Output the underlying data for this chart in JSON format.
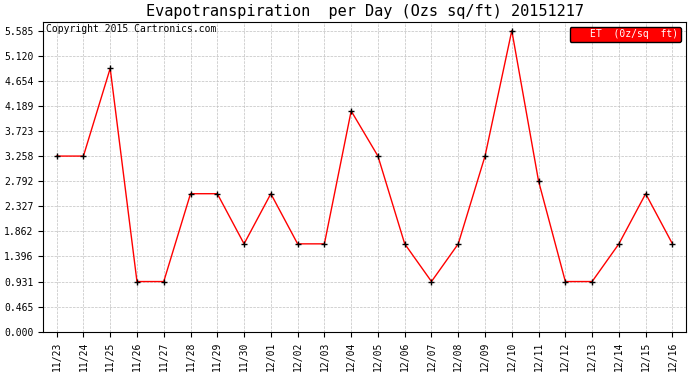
{
  "title": "Evapotranspiration  per Day (Ozs sq/ft) 20151217",
  "copyright": "Copyright 2015 Cartronics.com",
  "legend_label": "ET  (0z/sq  ft)",
  "x_labels": [
    "11/23",
    "11/24",
    "11/25",
    "11/26",
    "11/27",
    "11/28",
    "11/29",
    "11/30",
    "12/01",
    "12/02",
    "12/03",
    "12/04",
    "12/05",
    "12/06",
    "12/07",
    "12/08",
    "12/09",
    "12/10",
    "12/11",
    "12/12",
    "12/13",
    "12/14",
    "12/15",
    "12/16"
  ],
  "y_values": [
    3.258,
    3.258,
    4.885,
    0.931,
    0.931,
    2.56,
    2.56,
    1.63,
    2.56,
    1.63,
    1.63,
    4.095,
    3.258,
    1.63,
    0.931,
    1.63,
    3.258,
    5.585,
    2.792,
    0.931,
    0.931,
    1.63,
    2.56,
    1.63
  ],
  "y_ticks": [
    0.0,
    0.465,
    0.931,
    1.396,
    1.862,
    2.327,
    2.792,
    3.258,
    3.723,
    4.189,
    4.654,
    5.12,
    5.585
  ],
  "ylim": [
    0.0,
    5.75
  ],
  "line_color": "#FF0000",
  "marker_color": "#000000",
  "bg_color": "#FFFFFF",
  "grid_color": "#C0C0C0",
  "legend_bg": "#FF0000",
  "legend_text_color": "#FFFFFF",
  "title_fontsize": 11,
  "tick_fontsize": 7,
  "copyright_fontsize": 7
}
